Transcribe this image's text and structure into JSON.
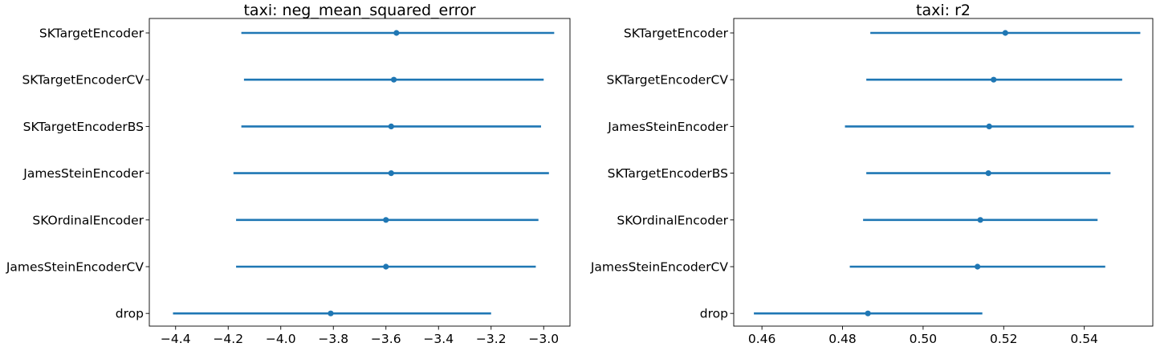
{
  "chart_data": [
    {
      "type": "errorbar",
      "title": "taxi: neg_mean_squared_error",
      "xlabel": "",
      "ylabel": "",
      "xlim": [
        -4.5,
        -2.9
      ],
      "xticks": [
        -4.4,
        -4.2,
        -4.0,
        -3.8,
        -3.6,
        -3.4,
        -3.2,
        -3.0
      ],
      "xtick_labels": [
        "−4.4",
        "−4.2",
        "−4.0",
        "−3.8",
        "−3.6",
        "−3.4",
        "−3.2",
        "−3.0"
      ],
      "grid": false,
      "color": "#1f77b4",
      "categories": [
        "SKTargetEncoder",
        "SKTargetEncoderCV",
        "SKTargetEncoderBS",
        "JamesSteinEncoder",
        "SKOrdinalEncoder",
        "JamesSteinEncoderCV",
        "drop"
      ],
      "points": [
        {
          "label": "SKTargetEncoder",
          "mean": -3.56,
          "low": -4.15,
          "high": -2.96
        },
        {
          "label": "SKTargetEncoderCV",
          "mean": -3.57,
          "low": -4.14,
          "high": -3.0
        },
        {
          "label": "SKTargetEncoderBS",
          "mean": -3.58,
          "low": -4.15,
          "high": -3.01
        },
        {
          "label": "JamesSteinEncoder",
          "mean": -3.58,
          "low": -4.18,
          "high": -2.98
        },
        {
          "label": "SKOrdinalEncoder",
          "mean": -3.6,
          "low": -4.17,
          "high": -3.02
        },
        {
          "label": "JamesSteinEncoderCV",
          "mean": -3.6,
          "low": -4.17,
          "high": -3.03
        },
        {
          "label": "drop",
          "mean": -3.81,
          "low": -4.41,
          "high": -3.2
        }
      ]
    },
    {
      "type": "errorbar",
      "title": "taxi: r2",
      "xlabel": "",
      "ylabel": "",
      "xlim": [
        0.453,
        0.557
      ],
      "xticks": [
        0.46,
        0.48,
        0.5,
        0.52,
        0.54
      ],
      "xtick_labels": [
        "0.46",
        "0.48",
        "0.50",
        "0.52",
        "0.54"
      ],
      "grid": false,
      "color": "#1f77b4",
      "categories": [
        "SKTargetEncoder",
        "SKTargetEncoderCV",
        "JamesSteinEncoder",
        "SKTargetEncoderBS",
        "SKOrdinalEncoder",
        "JamesSteinEncoderCV",
        "drop"
      ],
      "points": [
        {
          "label": "SKTargetEncoder",
          "mean": 0.5204,
          "low": 0.4869,
          "high": 0.5539
        },
        {
          "label": "SKTargetEncoderCV",
          "mean": 0.5175,
          "low": 0.4859,
          "high": 0.5494
        },
        {
          "label": "JamesSteinEncoder",
          "mean": 0.5164,
          "low": 0.4806,
          "high": 0.5523
        },
        {
          "label": "SKTargetEncoderBS",
          "mean": 0.5162,
          "low": 0.4859,
          "high": 0.5465
        },
        {
          "label": "SKOrdinalEncoder",
          "mean": 0.5142,
          "low": 0.4851,
          "high": 0.5433
        },
        {
          "label": "JamesSteinEncoderCV",
          "mean": 0.5135,
          "low": 0.4818,
          "high": 0.5452
        },
        {
          "label": "drop",
          "mean": 0.4863,
          "low": 0.458,
          "high": 0.5147
        }
      ]
    }
  ]
}
